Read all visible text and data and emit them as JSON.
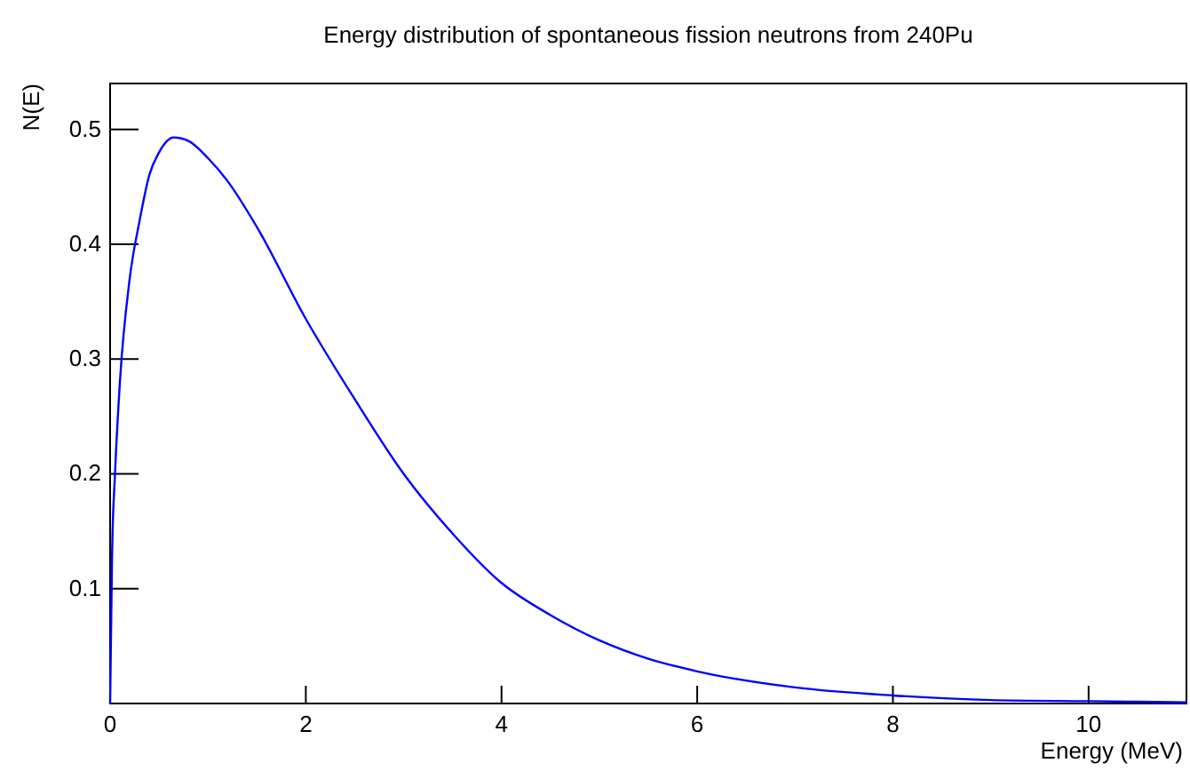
{
  "chart_data": {
    "type": "line",
    "title": "Energy distribution of spontaneous fission neutrons from 240Pu",
    "xlabel": "Energy (MeV)",
    "ylabel": "N(E)",
    "series": [
      {
        "color": "#0000ff",
        "x": [
          0,
          0.02,
          0.05,
          0.1,
          0.2,
          0.3,
          0.4,
          0.5,
          0.65,
          0.8,
          1.0,
          1.2,
          1.5,
          2,
          2.5,
          3,
          3.5,
          4,
          4.5,
          5,
          5.5,
          6,
          7,
          8,
          9,
          10,
          11
        ],
        "values": [
          0,
          0.13,
          0.2,
          0.28,
          0.37,
          0.42,
          0.46,
          0.48,
          0.493,
          0.49,
          0.475,
          0.455,
          0.415,
          0.335,
          0.265,
          0.2,
          0.148,
          0.105,
          0.077,
          0.055,
          0.039,
          0.028,
          0.014,
          0.007,
          0.003,
          0.002,
          0.001
        ]
      }
    ],
    "xlim": [
      0,
      11
    ],
    "xticks": [
      0,
      2,
      4,
      6,
      8,
      10
    ],
    "ylim": [
      0,
      0.54
    ],
    "yticks": [
      0.1,
      0.2,
      0.3,
      0.4,
      0.5
    ],
    "grid": false,
    "marker": "none",
    "line_style": "solid"
  }
}
